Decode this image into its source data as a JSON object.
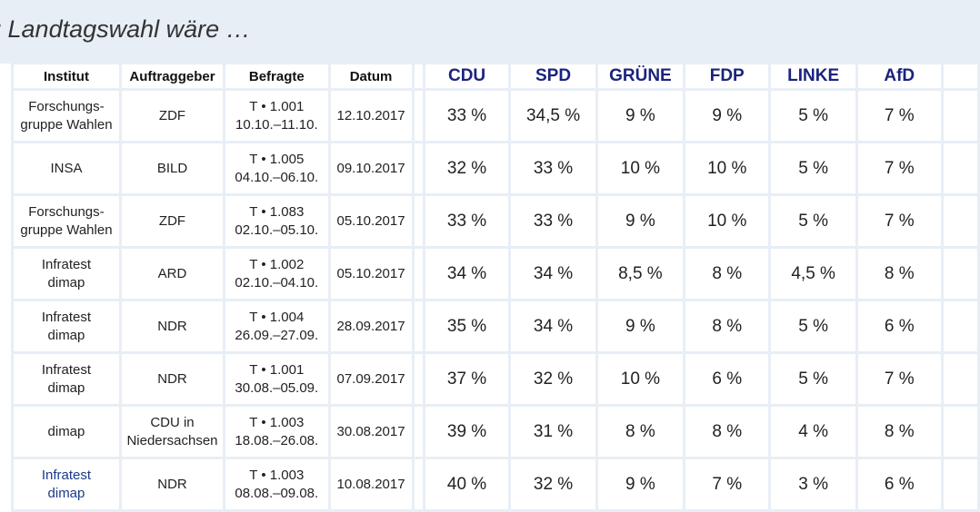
{
  "heading": "g Landtagswahl wäre …",
  "table": {
    "headers": {
      "institut": "Institut",
      "auftraggeber": "Auftraggeber",
      "befragte": "Befragte",
      "datum": "Datum",
      "cdu": "CDU",
      "spd": "SPD",
      "gruene": "GRÜNE",
      "fdp": "FDP",
      "linke": "LINKE",
      "afd": "AfD"
    },
    "rows": [
      {
        "inst1": "Forschungs-",
        "inst2": "gruppe Wahlen",
        "auftr1": "ZDF",
        "auftr2": "",
        "bef1": "T • 1.001",
        "bef2": "10.10.–11.10.",
        "datum": "12.10.2017",
        "cdu": "33 %",
        "spd": "34,5 %",
        "gruene": "9 %",
        "fdp": "9 %",
        "linke": "5 %",
        "afd": "7 %"
      },
      {
        "inst1": "INSA",
        "inst2": "",
        "auftr1": "BILD",
        "auftr2": "",
        "bef1": "T • 1.005",
        "bef2": "04.10.–06.10.",
        "datum": "09.10.2017",
        "cdu": "32 %",
        "spd": "33 %",
        "gruene": "10 %",
        "fdp": "10 %",
        "linke": "5 %",
        "afd": "7 %"
      },
      {
        "inst1": "Forschungs-",
        "inst2": "gruppe Wahlen",
        "auftr1": "ZDF",
        "auftr2": "",
        "bef1": "T • 1.083",
        "bef2": "02.10.–05.10.",
        "datum": "05.10.2017",
        "cdu": "33 %",
        "spd": "33 %",
        "gruene": "9 %",
        "fdp": "10 %",
        "linke": "5 %",
        "afd": "7 %"
      },
      {
        "inst1": "Infratest",
        "inst2": "dimap",
        "auftr1": "ARD",
        "auftr2": "",
        "bef1": "T • 1.002",
        "bef2": "02.10.–04.10.",
        "datum": "05.10.2017",
        "cdu": "34 %",
        "spd": "34 %",
        "gruene": "8,5 %",
        "fdp": "8 %",
        "linke": "4,5 %",
        "afd": "8 %"
      },
      {
        "inst1": "Infratest",
        "inst2": "dimap",
        "auftr1": "NDR",
        "auftr2": "",
        "bef1": "T • 1.004",
        "bef2": "26.09.–27.09.",
        "datum": "28.09.2017",
        "cdu": "35 %",
        "spd": "34 %",
        "gruene": "9 %",
        "fdp": "8 %",
        "linke": "5 %",
        "afd": "6 %"
      },
      {
        "inst1": "Infratest",
        "inst2": "dimap",
        "auftr1": "NDR",
        "auftr2": "",
        "bef1": "T • 1.001",
        "bef2": "30.08.–05.09.",
        "datum": "07.09.2017",
        "cdu": "37 %",
        "spd": "32 %",
        "gruene": "10 %",
        "fdp": "6 %",
        "linke": "5 %",
        "afd": "7 %"
      },
      {
        "inst1": "dimap",
        "inst2": "",
        "auftr1": "CDU in",
        "auftr2": "Niedersachsen",
        "bef1": "T • 1.003",
        "bef2": "18.08.–26.08.",
        "datum": "30.08.2017",
        "cdu": "39 %",
        "spd": "31 %",
        "gruene": "8 %",
        "fdp": "8 %",
        "linke": "4 %",
        "afd": "8 %"
      },
      {
        "inst1": "Infratest",
        "inst2": "dimap",
        "auftr1": "NDR",
        "auftr2": "",
        "bef1": "T • 1.003",
        "bef2": "08.08.–09.08.",
        "datum": "10.08.2017",
        "cdu": "40 %",
        "spd": "32 %",
        "gruene": "9 %",
        "fdp": "7 %",
        "linke": "3 %",
        "afd": "6 %"
      }
    ]
  },
  "colors": {
    "party_header": "#1a237e",
    "background": "#e8eef5",
    "link": "#1a3a8a"
  }
}
